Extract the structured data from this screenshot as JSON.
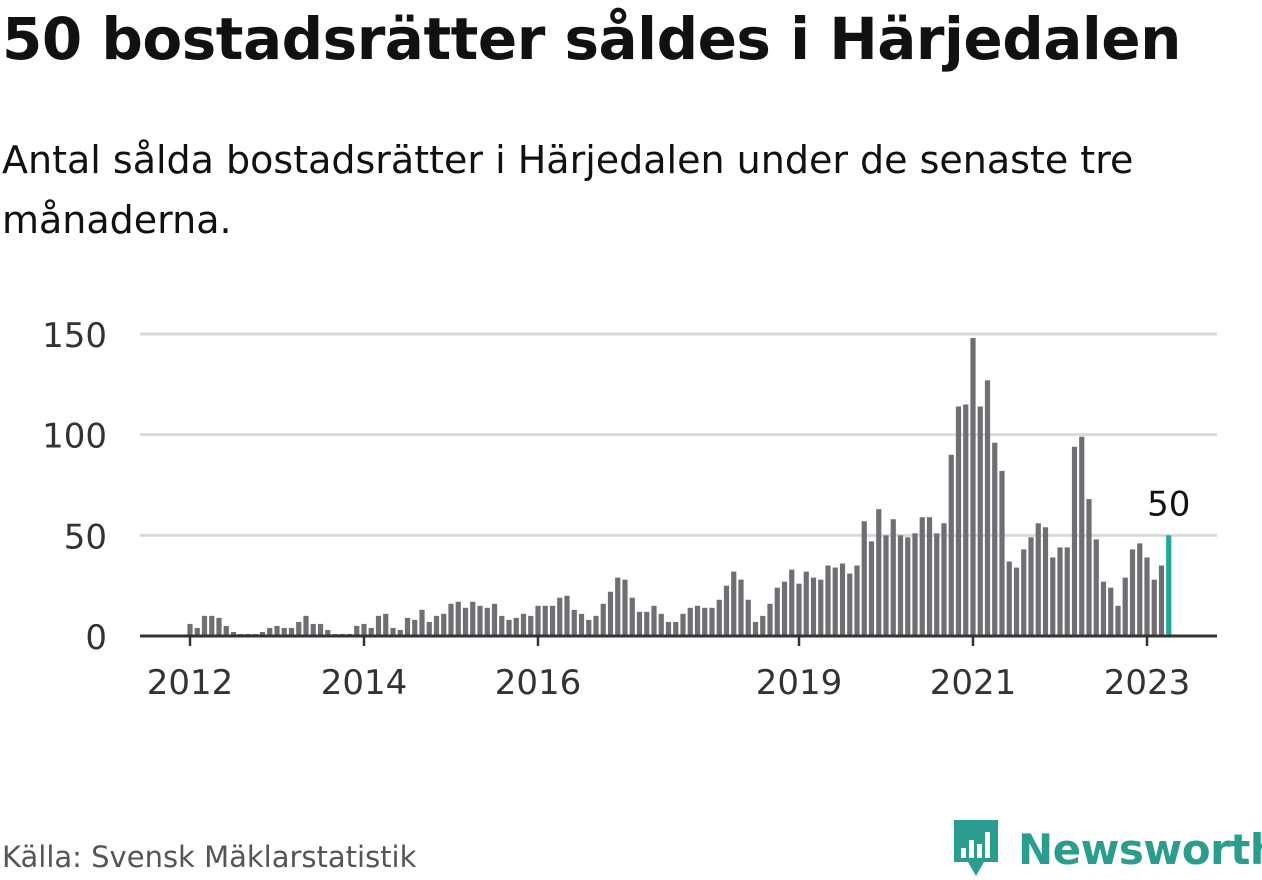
{
  "header": {
    "title": "50 bostadsrätter såldes i Härjedalen",
    "subtitle": "Antal sålda bostadsrätter i Härjedalen under de senaste tre månaderna."
  },
  "footer": {
    "source": "Källa: Svensk Mäklarstatistik",
    "brand": "Newsworthy"
  },
  "colors": {
    "bar": "#6f6e73",
    "highlight": "#1fa99a",
    "grid": "#d9d9d9",
    "axis": "#333333",
    "brand": "#2a9d8f"
  },
  "icons": {
    "brand_logo": "bar-chart-speech-bubble-icon"
  },
  "chart_data": {
    "type": "bar",
    "ylim": [
      0,
      150
    ],
    "yticks": [
      0,
      50,
      100,
      150
    ],
    "xticks": [
      {
        "label": "2012",
        "month_index": 0
      },
      {
        "label": "2014",
        "month_index": 24
      },
      {
        "label": "2016",
        "month_index": 48
      },
      {
        "label": "2019",
        "month_index": 84
      },
      {
        "label": "2021",
        "month_index": 108
      },
      {
        "label": "2023",
        "month_index": 132
      }
    ],
    "start_month": "2011-05",
    "highlight_label": "50",
    "values": [
      0,
      0,
      0,
      0,
      0,
      0,
      0,
      6,
      4,
      10,
      10,
      9,
      5,
      2,
      1,
      1,
      1,
      2,
      4,
      5,
      4,
      4,
      7,
      10,
      6,
      6,
      3,
      1,
      1,
      1,
      5,
      6,
      4,
      10,
      11,
      4,
      3,
      9,
      8,
      13,
      7,
      10,
      11,
      16,
      17,
      14,
      17,
      15,
      14,
      16,
      10,
      8,
      9,
      11,
      10,
      15,
      15,
      15,
      19,
      20,
      13,
      11,
      8,
      10,
      16,
      22,
      29,
      28,
      19,
      12,
      12,
      15,
      11,
      7,
      7,
      11,
      14,
      15,
      14,
      14,
      18,
      25,
      32,
      28,
      18,
      7,
      10,
      16,
      24,
      27,
      33,
      26,
      32,
      29,
      28,
      35,
      34,
      36,
      31,
      35,
      57,
      47,
      63,
      50,
      58,
      50,
      49,
      51,
      59,
      59,
      51,
      56,
      90,
      114,
      115,
      148,
      114,
      127,
      96,
      82,
      37,
      34,
      43,
      49,
      56,
      54,
      39,
      44,
      44,
      94,
      99,
      68,
      48,
      27,
      24,
      15,
      29,
      43,
      46,
      39,
      28,
      35,
      50
    ]
  }
}
